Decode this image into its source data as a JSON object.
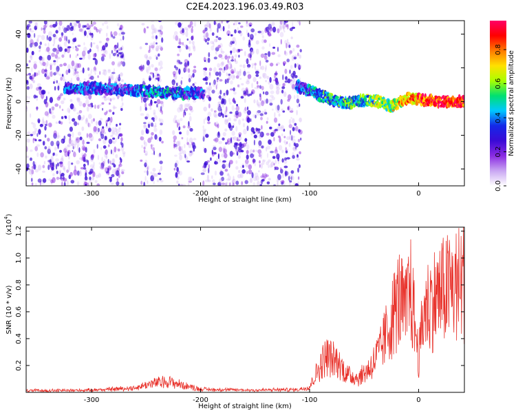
{
  "title": "C2E4.2023.196.03.49.R03",
  "colors": {
    "snr_line": "#e8312a",
    "spectro_cmap": [
      "#ffffff",
      "#c9a6f2",
      "#8a2be2",
      "#3a0ad6",
      "#1428e8",
      "#00c8ff",
      "#00e070",
      "#aaff00",
      "#ffe000",
      "#ff7a00",
      "#ff0000",
      "#ff0066"
    ]
  },
  "chart_data": [
    {
      "type": "heatmap",
      "xlabel": "Height of straight line (km)",
      "ylabel": "Frequency (Hz)",
      "xlim": [
        -360,
        42
      ],
      "ylim": [
        -50,
        48
      ],
      "xticks": [
        -300,
        -200,
        -100,
        0
      ],
      "xtick_labels": [
        "-300",
        "-200",
        "-100",
        "0"
      ],
      "yticks": [
        40,
        20,
        0,
        -20,
        -40
      ],
      "ytick_labels": [
        "40",
        "20",
        "0",
        "-20",
        "-40"
      ],
      "colorbar": {
        "label": "Normalized spectral amplitude",
        "range": [
          0,
          0.97
        ],
        "ticks": [
          0.0,
          0.2,
          0.4,
          0.6,
          0.8
        ],
        "tick_labels": [
          "0.0",
          "0.2",
          "0.4",
          "0.6",
          "0.8"
        ]
      },
      "noise_segments": [
        [
          -360,
          -270
        ],
        [
          -255,
          -235
        ],
        [
          -225,
          -205
        ],
        [
          -198,
          -108
        ]
      ],
      "signal_band": [
        {
          "x": -325,
          "f": 8,
          "amp": 0.35
        },
        {
          "x": -300,
          "f": 8,
          "amp": 0.3
        },
        {
          "x": -270,
          "f": 7,
          "amp": 0.3
        },
        {
          "x": -245,
          "f": 6,
          "amp": 0.4
        },
        {
          "x": -220,
          "f": 5,
          "amp": 0.35
        },
        {
          "x": -200,
          "f": 5,
          "amp": 0.3
        },
        {
          "x": -110,
          "f": 9,
          "amp": 0.3
        },
        {
          "x": -95,
          "f": 5,
          "amp": 0.4
        },
        {
          "x": -80,
          "f": 1,
          "amp": 0.45
        },
        {
          "x": -65,
          "f": -1,
          "amp": 0.45
        },
        {
          "x": -50,
          "f": 1,
          "amp": 0.5
        },
        {
          "x": -35,
          "f": 0,
          "amp": 0.55
        },
        {
          "x": -25,
          "f": -3,
          "amp": 0.6
        },
        {
          "x": -10,
          "f": 2,
          "amp": 0.75
        },
        {
          "x": 5,
          "f": 1,
          "amp": 0.85
        },
        {
          "x": 20,
          "f": 0,
          "amp": 0.9
        },
        {
          "x": 42,
          "f": 0,
          "amp": 0.9
        }
      ]
    },
    {
      "type": "line",
      "xlabel": "Height of straight line (km)",
      "ylabel": "SNR (10 * v/v)",
      "y_multiplier": "(x10",
      "y_multiplier_exp": "4",
      "y_multiplier_close": ")",
      "xlim": [
        -360,
        42
      ],
      "ylim": [
        0,
        12300
      ],
      "xticks": [
        -300,
        -200,
        -100,
        0
      ],
      "xtick_labels": [
        "-300",
        "-200",
        "-100",
        "0"
      ],
      "yticks": [
        2000,
        4000,
        6000,
        8000,
        10000,
        12000
      ],
      "ytick_labels": [
        "0.2",
        "0.4",
        "0.6",
        "0.8",
        "1.0",
        "1.2"
      ],
      "series": [
        {
          "x": [
            -360,
            -300,
            -260,
            -245,
            -230,
            -215,
            -200,
            -190,
            -150,
            -110,
            -100,
            -95,
            -85,
            -75,
            -65,
            -55,
            -45,
            -35,
            -25,
            -18,
            -12,
            -8,
            -3,
            0,
            5,
            15,
            25,
            35,
            42
          ],
          "y": [
            150,
            200,
            400,
            800,
            1000,
            600,
            300,
            250,
            200,
            250,
            500,
            1500,
            3300,
            2800,
            1600,
            1300,
            2200,
            3800,
            6500,
            8500,
            7000,
            9500,
            6000,
            3000,
            7500,
            8500,
            9200,
            9600,
            10000
          ]
        }
      ]
    }
  ]
}
